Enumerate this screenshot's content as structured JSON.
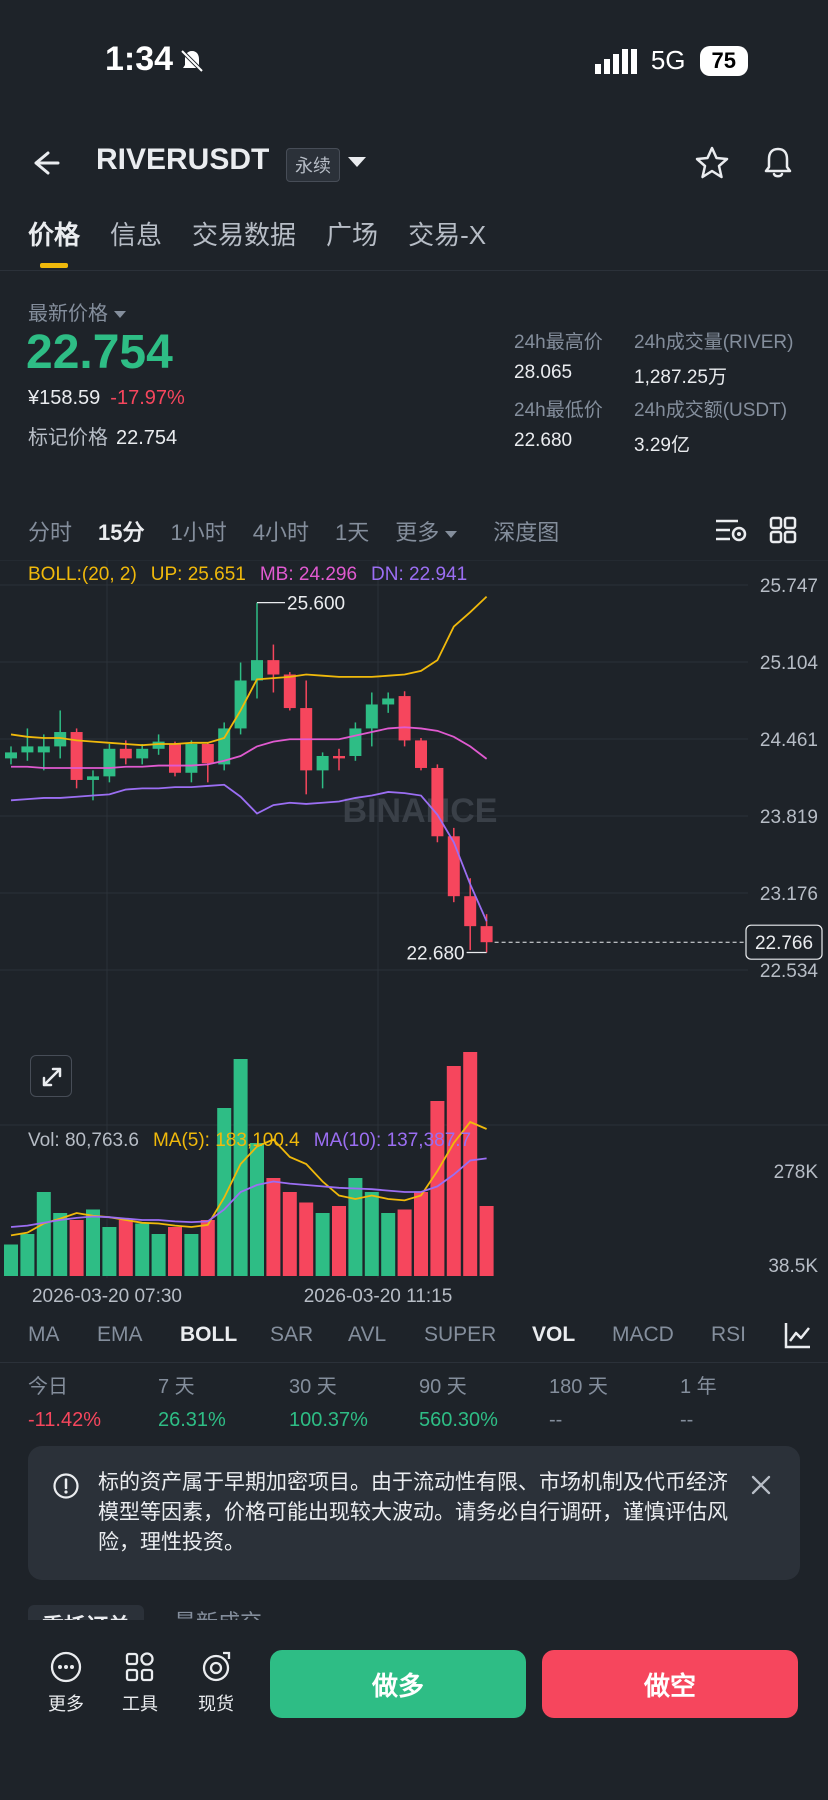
{
  "status_bar": {
    "time": "1:34",
    "network": "5G",
    "battery": "75"
  },
  "header": {
    "symbol": "RIVERUSDT",
    "contract_tag": "永续"
  },
  "tabs": [
    {
      "label": "价格",
      "active": true
    },
    {
      "label": "信息",
      "active": false
    },
    {
      "label": "交易数据",
      "active": false
    },
    {
      "label": "广场",
      "active": false
    },
    {
      "label": "交易-X",
      "active": false
    }
  ],
  "ticker": {
    "last_price_label": "最新价格",
    "last_price": "22.754",
    "cny_price": "¥158.59",
    "change_pct": "-17.97%",
    "mark_price_label": "标记价格",
    "mark_price": "22.754",
    "stats": {
      "high_label": "24h最高价",
      "high": "28.065",
      "volume_label": "24h成交量(RIVER)",
      "volume": "1,287.25万",
      "low_label": "24h最低价",
      "low": "22.680",
      "turnover_label": "24h成交额(USDT)",
      "turnover": "3.29亿"
    }
  },
  "intervals": [
    {
      "label": "分时",
      "active": false
    },
    {
      "label": "15分",
      "active": true
    },
    {
      "label": "1小时",
      "active": false
    },
    {
      "label": "4小时",
      "active": false
    },
    {
      "label": "1天",
      "active": false
    },
    {
      "label": "更多",
      "active": false
    },
    {
      "label": "深度图",
      "active": false
    }
  ],
  "boll_legend": {
    "name": "BOLL:(20, 2)",
    "up": "UP: 25.651",
    "mb": "MB: 24.296",
    "dn": "DN: 22.941"
  },
  "vol_legend": {
    "vol": "Vol: 80,763.6",
    "ma5": "MA(5): 183,100.4",
    "ma10": "MA(10): 137,387.7"
  },
  "chart_data": {
    "type": "candlestick",
    "y_axis_labels": [
      "25.747",
      "25.104",
      "24.461",
      "23.819",
      "23.176",
      "22.534"
    ],
    "ylim": [
      22.534,
      25.747
    ],
    "x_tick_labels": [
      "2026-03-20 07:30",
      "2026-03-20 11:15"
    ],
    "high_marker": "25.600",
    "low_marker": "22.680",
    "current_price_tag": "22.766",
    "watermark": "BINANCE",
    "candles": [
      {
        "o": 24.3,
        "h": 24.4,
        "l": 24.25,
        "c": 24.35
      },
      {
        "o": 24.35,
        "h": 24.55,
        "l": 24.28,
        "c": 24.4
      },
      {
        "o": 24.35,
        "h": 24.5,
        "l": 24.2,
        "c": 24.4
      },
      {
        "o": 24.4,
        "h": 24.7,
        "l": 24.3,
        "c": 24.52
      },
      {
        "o": 24.52,
        "h": 24.55,
        "l": 24.05,
        "c": 24.12
      },
      {
        "o": 24.12,
        "h": 24.2,
        "l": 23.95,
        "c": 24.15
      },
      {
        "o": 24.15,
        "h": 24.42,
        "l": 24.1,
        "c": 24.38
      },
      {
        "o": 24.38,
        "h": 24.45,
        "l": 24.25,
        "c": 24.3
      },
      {
        "o": 24.3,
        "h": 24.42,
        "l": 24.25,
        "c": 24.38
      },
      {
        "o": 24.38,
        "h": 24.5,
        "l": 24.33,
        "c": 24.44
      },
      {
        "o": 24.42,
        "h": 24.44,
        "l": 24.15,
        "c": 24.18
      },
      {
        "o": 24.18,
        "h": 24.45,
        "l": 24.1,
        "c": 24.42
      },
      {
        "o": 24.42,
        "h": 24.43,
        "l": 24.1,
        "c": 24.26
      },
      {
        "o": 24.25,
        "h": 24.6,
        "l": 24.2,
        "c": 24.55
      },
      {
        "o": 24.55,
        "h": 25.1,
        "l": 24.5,
        "c": 24.95
      },
      {
        "o": 24.95,
        "h": 25.6,
        "l": 24.8,
        "c": 25.12
      },
      {
        "o": 25.12,
        "h": 25.25,
        "l": 24.85,
        "c": 25.0
      },
      {
        "o": 25.0,
        "h": 25.02,
        "l": 24.7,
        "c": 24.72
      },
      {
        "o": 24.72,
        "h": 24.95,
        "l": 24.0,
        "c": 24.2
      },
      {
        "o": 24.2,
        "h": 24.35,
        "l": 24.05,
        "c": 24.32
      },
      {
        "o": 24.32,
        "h": 24.38,
        "l": 24.2,
        "c": 24.3
      },
      {
        "o": 24.32,
        "h": 24.6,
        "l": 24.28,
        "c": 24.55
      },
      {
        "o": 24.55,
        "h": 24.85,
        "l": 24.4,
        "c": 24.75
      },
      {
        "o": 24.75,
        "h": 24.85,
        "l": 24.68,
        "c": 24.8
      },
      {
        "o": 24.82,
        "h": 24.86,
        "l": 24.4,
        "c": 24.45
      },
      {
        "o": 24.45,
        "h": 24.47,
        "l": 24.2,
        "c": 24.22
      },
      {
        "o": 24.22,
        "h": 24.25,
        "l": 23.6,
        "c": 23.65
      },
      {
        "o": 23.65,
        "h": 23.72,
        "l": 23.1,
        "c": 23.15
      },
      {
        "o": 23.15,
        "h": 23.3,
        "l": 22.7,
        "c": 22.9
      },
      {
        "o": 22.9,
        "h": 23.0,
        "l": 22.68,
        "c": 22.766
      }
    ],
    "boll": {
      "up": [
        24.5,
        24.48,
        24.47,
        24.47,
        24.45,
        24.44,
        24.43,
        24.42,
        24.41,
        24.42,
        24.42,
        24.43,
        24.43,
        24.47,
        24.7,
        24.96,
        24.97,
        24.98,
        25.0,
        24.99,
        24.98,
        24.98,
        24.98,
        24.99,
        25.0,
        25.03,
        25.12,
        25.4,
        25.52,
        25.65
      ],
      "mb": [
        24.23,
        24.23,
        24.22,
        24.22,
        24.22,
        24.22,
        24.22,
        24.23,
        24.23,
        24.24,
        24.24,
        24.24,
        24.25,
        24.28,
        24.32,
        24.4,
        24.44,
        24.46,
        24.46,
        24.46,
        24.46,
        24.49,
        24.52,
        24.55,
        24.56,
        24.55,
        24.53,
        24.48,
        24.4,
        24.296
      ],
      "dn": [
        23.95,
        23.96,
        23.97,
        23.97,
        23.98,
        23.99,
        24.0,
        24.04,
        24.05,
        24.05,
        24.06,
        24.06,
        24.07,
        24.08,
        23.98,
        23.84,
        23.91,
        23.93,
        23.92,
        23.93,
        23.94,
        23.97,
        23.99,
        24.02,
        24.01,
        23.99,
        23.83,
        23.6,
        23.25,
        22.941
      ]
    },
    "volume": {
      "y_axis_labels": [
        "278K",
        "38.5K"
      ],
      "values": [
        45,
        60,
        120,
        90,
        80,
        95,
        70,
        80,
        75,
        60,
        70,
        60,
        80,
        240,
        310,
        190,
        140,
        120,
        105,
        90,
        100,
        140,
        120,
        90,
        95,
        120,
        250,
        300,
        320,
        100
      ],
      "ma5": [
        58,
        62,
        75,
        82,
        90,
        86,
        84,
        80,
        76,
        75,
        72,
        70,
        73,
        112,
        160,
        185,
        195,
        170,
        160,
        135,
        115,
        110,
        115,
        110,
        108,
        115,
        150,
        190,
        220,
        210
      ],
      "ma10": [
        70,
        72,
        76,
        80,
        83,
        85,
        84,
        82,
        80,
        80,
        78,
        77,
        78,
        95,
        120,
        130,
        135,
        132,
        130,
        128,
        126,
        125,
        124,
        122,
        120,
        120,
        128,
        145,
        165,
        168
      ]
    }
  },
  "indicators": [
    {
      "label": "MA",
      "active": false
    },
    {
      "label": "EMA",
      "active": false
    },
    {
      "label": "BOLL",
      "active": true
    },
    {
      "label": "SAR",
      "active": false
    },
    {
      "label": "AVL",
      "active": false
    },
    {
      "label": "SUPER",
      "active": false
    },
    {
      "label": "VOL",
      "active": true
    },
    {
      "label": "MACD",
      "active": false
    },
    {
      "label": "RSI",
      "active": false
    }
  ],
  "performance": [
    {
      "label": "今日",
      "value": "-11.42%",
      "sign": "neg"
    },
    {
      "label": "7 天",
      "value": "26.31%",
      "sign": "pos"
    },
    {
      "label": "30 天",
      "value": "100.37%",
      "sign": "pos"
    },
    {
      "label": "90 天",
      "value": "560.30%",
      "sign": "pos"
    },
    {
      "label": "180 天",
      "value": "--",
      "sign": "dash"
    },
    {
      "label": "1 年",
      "value": "--",
      "sign": "dash"
    }
  ],
  "notice": {
    "text": "标的资产属于早期加密项目。由于流动性有限、市场机制及代币经济模型等因素，价格可能出现较大波动。请务必自行调研，谨慎评估风险，理性投资。"
  },
  "bottom": {
    "peek_tabs": [
      "委托订单",
      "最新成交"
    ],
    "tools": [
      {
        "label": "更多",
        "icon": "more-icon"
      },
      {
        "label": "工具",
        "icon": "tools-icon"
      },
      {
        "label": "现货",
        "icon": "spot-icon"
      }
    ],
    "long_label": "做多",
    "short_label": "做空"
  },
  "colors": {
    "up": "#2ebd85",
    "down": "#f6465d",
    "boll_up": "#f0b90b",
    "boll_mb": "#e05ad0",
    "boll_dn": "#9b6ef3",
    "accent": "#f0b90b"
  }
}
